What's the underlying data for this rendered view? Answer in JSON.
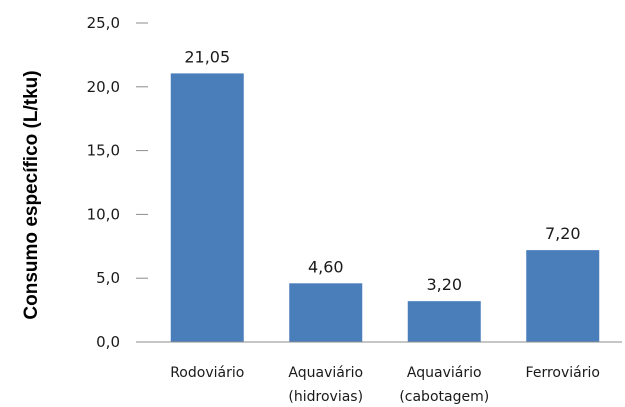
{
  "chart_data": {
    "type": "bar",
    "title": "",
    "xlabel": "",
    "ylabel": "Consumo específico (L/tku)",
    "categories": [
      [
        "Rodoviário"
      ],
      [
        "Aquaviário",
        "(hidrovias)"
      ],
      [
        "Aquaviário",
        "(cabotagem)"
      ],
      [
        "Ferroviário"
      ]
    ],
    "values": [
      21.05,
      4.6,
      3.2,
      7.2
    ],
    "data_labels": [
      "21,05",
      "4,60",
      "3,20",
      "7,20"
    ],
    "ylim": [
      0,
      25
    ],
    "yticks": [
      0,
      5,
      10,
      15,
      20,
      25
    ],
    "ytick_labels": [
      "0,0",
      "5,0",
      "10,0",
      "15,0",
      "20,0",
      "25,0"
    ],
    "grid": false,
    "legend": "none",
    "colors": {
      "bar": "#4a7ebb",
      "axis": "#8c8c8c"
    }
  }
}
